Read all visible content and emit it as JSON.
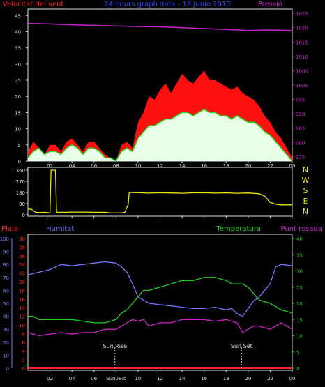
{
  "header": {
    "wind_label": "Velocitat del vent",
    "title": "24 hours graph data - 18 Junio 2015",
    "pressure_label": "Pressió"
  },
  "bottom_header": {
    "rain_label": "Pluja",
    "humidity_label": "Humitat",
    "temperature_label": "Temperatura",
    "dewpoint_label": "Punt rosada"
  },
  "colors": {
    "wind_gust": "#ff1010",
    "wind_avg": "#22dd22",
    "wind_fill": "#e8ffe8",
    "pressure": "#cc22cc",
    "direction": "#e8e800",
    "humidity": "#7777ff",
    "temperature": "#22cc22",
    "dewpoint": "#cc22cc",
    "rain": "#ff2020",
    "panel_border": "#dddddd",
    "tick_text": "#dddddd"
  },
  "chart_data": [
    {
      "type": "line",
      "title": "24 hours graph data - 18 Junio 2015",
      "x_ticks": [
        "02",
        "04",
        "06",
        "08",
        "10",
        "12",
        "14",
        "16",
        "18",
        "20",
        "22",
        "00"
      ],
      "x_range_hours": [
        0,
        24
      ],
      "y_left_label": "Velocitat del vent",
      "y_left_ticks": [
        0,
        5,
        10,
        15,
        20,
        25,
        30,
        35,
        40,
        45
      ],
      "y_left_range": [
        0,
        47
      ],
      "y_right_label": "Pressió",
      "y_right_ticks": [
        975,
        980,
        985,
        990,
        995,
        1000,
        1005,
        1010,
        1015,
        1020,
        1025
      ],
      "y_right_range": [
        973.5,
        1026.5
      ],
      "series": [
        {
          "name": "Velocitat del vent",
          "axis": "left",
          "color_key": "wind_gust",
          "x": [
            0,
            0.5,
            1,
            1.5,
            2,
            2.5,
            3,
            3.5,
            4,
            4.5,
            5,
            5.5,
            6,
            6.5,
            7,
            7.5,
            8,
            8.5,
            9,
            9.5,
            10,
            10.5,
            11,
            11.5,
            12,
            12.5,
            13,
            13.5,
            14,
            14.5,
            15,
            15.5,
            16,
            16.5,
            17,
            17.5,
            18,
            18.5,
            19,
            19.5,
            20,
            20.5,
            21,
            21.5,
            22,
            22.5,
            23,
            23.5,
            24
          ],
          "values": [
            3,
            6,
            4,
            2,
            5,
            5,
            3,
            6,
            7,
            5,
            3,
            6,
            6,
            4,
            2,
            1,
            0,
            5,
            6,
            4,
            12,
            15,
            20,
            19,
            22,
            24,
            21,
            24,
            27,
            25,
            24,
            26,
            28,
            25,
            25,
            24,
            23,
            22,
            23,
            21,
            20,
            19,
            17,
            14,
            12,
            9,
            7,
            4,
            1
          ]
        },
        {
          "name": "",
          "axis": "left",
          "color_key": "wind_avg",
          "x": [
            0,
            0.5,
            1,
            1.5,
            2,
            2.5,
            3,
            3.5,
            4,
            4.5,
            5,
            5.5,
            6,
            6.5,
            7,
            7.5,
            8,
            8.5,
            9,
            9.5,
            10,
            10.5,
            11,
            11.5,
            12,
            12.5,
            13,
            13.5,
            14,
            14.5,
            15,
            15.5,
            16,
            16.5,
            17,
            17.5,
            18,
            18.5,
            19,
            19.5,
            20,
            20.5,
            21,
            21.5,
            22,
            22.5,
            23,
            23.5,
            24
          ],
          "values": [
            1,
            3,
            4,
            2,
            3,
            3,
            2,
            4,
            5,
            4,
            2,
            4,
            4,
            3,
            1,
            1,
            0,
            3,
            4,
            3,
            7,
            9,
            11,
            11,
            12,
            13,
            13,
            14,
            15,
            15,
            14,
            15,
            16,
            15,
            15,
            14,
            14,
            13,
            14,
            13,
            12,
            12,
            11,
            9,
            8,
            6,
            4,
            2,
            0
          ]
        },
        {
          "name": "Pressió",
          "axis": "right",
          "color_key": "pressure",
          "x": [
            0,
            2,
            4,
            6,
            8,
            10,
            12,
            14,
            16,
            18,
            20,
            22,
            24
          ],
          "values": [
            1021.5,
            1021.3,
            1021,
            1020.8,
            1020.6,
            1020.4,
            1020.3,
            1020,
            1019.7,
            1019.4,
            1019,
            1019.2,
            1019
          ]
        }
      ]
    },
    {
      "type": "line",
      "x_ticks": [
        "02",
        "04",
        "06",
        "08",
        "10",
        "12",
        "14",
        "16",
        "18",
        "20",
        "22",
        "00"
      ],
      "y_left_ticks": [
        0,
        90,
        180,
        270,
        360
      ],
      "y_left_range": [
        0,
        360
      ],
      "y_right_labels": [
        "N",
        "W",
        "S",
        "E",
        "N"
      ],
      "series": [
        {
          "name": "",
          "color_key": "direction",
          "x": [
            0,
            0.3,
            0.7,
            1,
            1.5,
            2,
            2.1,
            2.5,
            2.6,
            3,
            3.5,
            4,
            5,
            6,
            7,
            7.5,
            8,
            8.5,
            8.8,
            9,
            9.1,
            9.2,
            10,
            11,
            12,
            13,
            14,
            15,
            16,
            17,
            18,
            19,
            20,
            21,
            21.5,
            22,
            22.5,
            23,
            24
          ],
          "values": [
            45,
            45,
            20,
            18,
            20,
            15,
            360,
            360,
            20,
            20,
            20,
            22,
            22,
            20,
            20,
            15,
            15,
            15,
            20,
            60,
            80,
            180,
            178,
            175,
            178,
            176,
            174,
            177,
            178,
            175,
            177,
            174,
            176,
            170,
            150,
            100,
            85,
            80,
            80
          ]
        }
      ]
    },
    {
      "type": "line",
      "x_ticks": [
        "02",
        "04",
        "06",
        "08",
        "10",
        "12",
        "14",
        "16",
        "18",
        "20",
        "22",
        "00"
      ],
      "axis_pluja_ticks": [
        0,
        2,
        4,
        6,
        8,
        10,
        12,
        14,
        16,
        18,
        20,
        22,
        24,
        26,
        28,
        30
      ],
      "axis_humitat_ticks": [
        0,
        10,
        20,
        30,
        40,
        50,
        60,
        70,
        80,
        90,
        100
      ],
      "axis_temp_ticks": [
        0,
        5,
        10,
        15,
        20,
        25,
        30,
        35,
        40
      ],
      "annotations": [
        "Sun Rise",
        "Sun Set"
      ],
      "marker_labels": [
        "Sun08:c"
      ],
      "series": [
        {
          "name": "Humitat",
          "axis": "humitat",
          "color_key": "humidity",
          "x": [
            0,
            1,
            2,
            3,
            4,
            5,
            6,
            7,
            8,
            8.5,
            9,
            9.5,
            10,
            11,
            12,
            13,
            14,
            15,
            16,
            17,
            18,
            18.5,
            19,
            19.5,
            20,
            20.5,
            21,
            21.5,
            22,
            22.5,
            23,
            24
          ],
          "values": [
            72,
            74,
            76,
            80,
            79,
            80,
            81,
            82,
            81,
            78,
            74,
            65,
            55,
            50,
            49,
            48,
            47,
            46,
            46,
            47,
            45,
            46,
            42,
            40,
            46,
            52,
            55,
            60,
            65,
            78,
            80,
            79
          ]
        },
        {
          "name": "Temperatura",
          "axis": "temp",
          "color_key": "temperature",
          "x": [
            0,
            0.5,
            1,
            2,
            3,
            4,
            5,
            6,
            7,
            8,
            8.5,
            9,
            9.5,
            10,
            10.5,
            11,
            12,
            13,
            14,
            15,
            16,
            17,
            18,
            18.5,
            19,
            19.5,
            20,
            20.5,
            21,
            22,
            23,
            24
          ],
          "values": [
            16,
            16,
            15,
            15,
            15,
            15,
            14.5,
            14,
            14,
            15,
            17,
            18,
            20,
            22,
            24,
            24,
            25,
            26,
            27,
            27,
            28,
            28,
            27,
            26,
            26,
            26,
            25,
            23,
            21,
            20,
            18,
            17
          ]
        },
        {
          "name": "Punt rosada",
          "axis": "temp",
          "color_key": "dewpoint",
          "x": [
            0,
            1,
            2,
            3,
            4,
            5,
            6,
            7,
            8,
            8.5,
            9,
            9.5,
            10,
            10.5,
            11,
            12,
            13,
            14,
            15,
            16,
            17,
            18,
            19,
            19.5,
            20,
            20.5,
            21,
            22,
            23,
            24
          ],
          "values": [
            11,
            10,
            10.5,
            11,
            10.5,
            11,
            11,
            12,
            12,
            13,
            14,
            15,
            14.5,
            15,
            13,
            14,
            14,
            15,
            15,
            15,
            14.5,
            15,
            14,
            11,
            12,
            13,
            13,
            12,
            14,
            12
          ]
        },
        {
          "name": "Pluja",
          "axis": "pluja",
          "color_key": "rain",
          "x": [
            0,
            24
          ],
          "values": [
            0,
            0
          ]
        }
      ]
    }
  ]
}
